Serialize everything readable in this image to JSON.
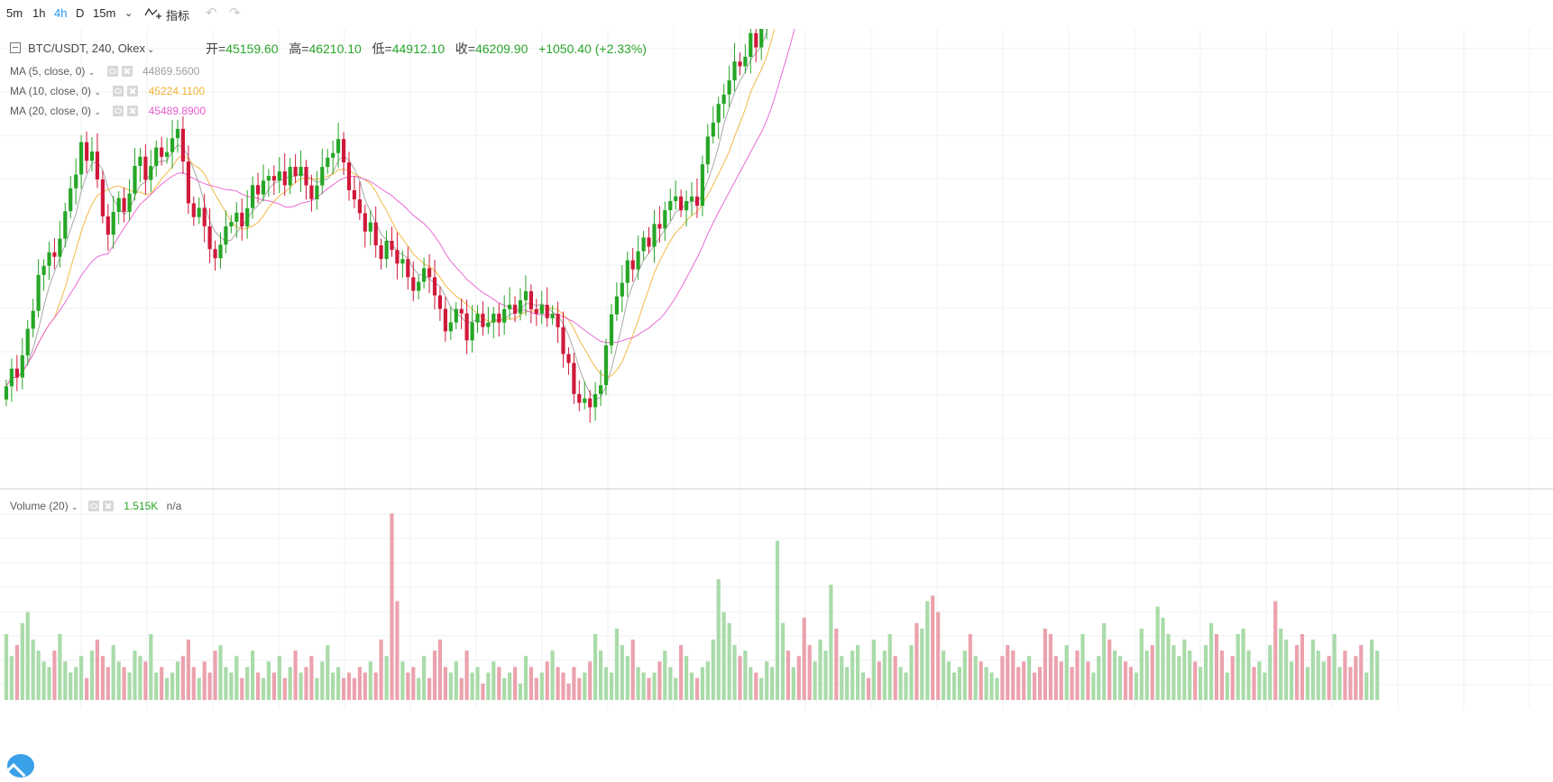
{
  "toolbar": {
    "intervals": [
      "5m",
      "1h",
      "4h",
      "D",
      "15m"
    ],
    "active_interval": "4h",
    "indicators_label": "指标"
  },
  "header": {
    "symbol": "BTC/USDT, 240, Okex",
    "open_label": "开",
    "open": "45159.60",
    "high_label": "高",
    "high": "46210.10",
    "low_label": "低",
    "low": "44912.10",
    "close_label": "收",
    "close": "46209.90",
    "change": "+1050.40 (+2.33%)"
  },
  "indicators": [
    {
      "label": "MA (5, close, 0)",
      "value": "44869.5600",
      "color": "#9e9e9e"
    },
    {
      "label": "MA (10, close, 0)",
      "value": "45224.1100",
      "color": "#f2b233"
    },
    {
      "label": "MA (20, close, 0)",
      "value": "45489.8900",
      "color": "#e85bd0"
    }
  ],
  "volume_panel": {
    "label": "Volume (20)",
    "value": "1.515K",
    "extra": "n/a"
  },
  "colors": {
    "up": "#26a626",
    "down": "#d0193a",
    "vol_up": "#a9dba9",
    "vol_down": "#eba2ad",
    "grid": "#eef1f3",
    "last_price_line": "#26a626"
  },
  "chart_data": {
    "type": "candlestick",
    "seed_price": 43800,
    "returns": [
      0.003,
      0.004,
      -0.002,
      0.005,
      0.006,
      0.004,
      0.008,
      0.002,
      0.003,
      -0.001,
      0.004,
      0.006,
      0.005,
      0.003,
      0.007,
      -0.004,
      0.002,
      -0.006,
      -0.008,
      -0.004,
      0.005,
      0.003,
      -0.003,
      0.004,
      0.006,
      0.002,
      -0.005,
      0.003,
      0.004,
      -0.002,
      0.001,
      0.003,
      0.002,
      -0.007,
      -0.009,
      -0.003,
      0.002,
      -0.004,
      -0.005,
      -0.002,
      0.003,
      0.004,
      0.001,
      0.002,
      -0.003,
      0.004,
      0.005,
      -0.002,
      0.003,
      0.001,
      -0.001,
      0.002,
      -0.003,
      0.004,
      -0.002,
      0.002,
      -0.004,
      -0.003,
      0.003,
      0.004,
      0.002,
      0.001,
      0.003,
      -0.005,
      -0.006,
      -0.002,
      -0.003,
      -0.004,
      0.002,
      -0.005,
      -0.003,
      0.004,
      -0.002,
      -0.003,
      0.001,
      -0.004,
      -0.003,
      0.002,
      0.003,
      -0.002,
      -0.004,
      -0.003,
      -0.005,
      0.002,
      0.003,
      -0.001,
      -0.006,
      0.004,
      0.002,
      -0.003,
      0.001,
      0.002,
      -0.002,
      0.003,
      0.001,
      -0.002,
      0.003,
      0.002,
      -0.004,
      -0.001,
      0.002,
      -0.003,
      0.001,
      -0.003,
      -0.006,
      -0.002,
      -0.007,
      -0.002,
      0.001,
      -0.002,
      0.003,
      0.002,
      0.009,
      0.007,
      0.004,
      0.003,
      0.005,
      -0.002,
      0.004,
      0.003,
      -0.002,
      0.005,
      -0.001,
      0.004,
      0.002,
      0.001,
      -0.003,
      0.002,
      0.001,
      -0.002,
      0.009,
      0.006,
      0.003,
      0.004,
      0.002,
      0.003,
      0.004,
      -0.001,
      0.002,
      0.005,
      -0.003,
      0.004,
      0.007,
      0.016,
      0.012,
      0.006,
      -0.004,
      0.008,
      -0.002,
      -0.012,
      -0.008,
      0.006,
      0.004,
      0.005,
      0.003,
      -0.005,
      0.008,
      0.006,
      0.005,
      0.006,
      0.003,
      -0.004,
      0.003,
      -0.003,
      0.002,
      0.003,
      -0.004,
      0.002,
      0.001,
      0.003,
      -0.002,
      0.002,
      0.001,
      -0.003,
      -0.006,
      0.004,
      0.006,
      0.009,
      0.004,
      0.002,
      -0.002,
      0.003,
      -0.003,
      0.002,
      0.004,
      0.002,
      -0.002,
      -0.003,
      -0.004,
      -0.006,
      -0.003,
      0.002,
      -0.003,
      -0.002,
      -0.004,
      -0.003,
      -0.002,
      -0.003,
      0.001,
      -0.003,
      -0.002,
      0.001,
      -0.002,
      0.002,
      0.006,
      0.004,
      -0.002,
      0.002,
      0.001,
      -0.004,
      -0.006,
      0.005,
      0.007,
      0.006,
      -0.002,
      0.004,
      0.003,
      0.006,
      0.007,
      0.004,
      0.003,
      0.004,
      -0.002,
      0.003,
      0.004,
      0.003,
      -0.002,
      -0.003,
      0.002,
      -0.004,
      0.003,
      0.007,
      0.008,
      -0.003,
      0.001,
      0.003,
      0.002,
      -0.002,
      0.001,
      0.004,
      0.002,
      -0.002,
      -0.003,
      0.002,
      0.003,
      0.002,
      0.001,
      -0.002,
      0.003,
      0.002,
      -0.004,
      -0.005,
      -0.006,
      -0.002,
      0.002,
      0.004,
      0.0233
    ],
    "volumes": [
      12,
      8,
      10,
      14,
      16,
      11,
      9,
      7,
      6,
      9,
      12,
      7,
      5,
      6,
      8,
      4,
      9,
      11,
      8,
      6,
      10,
      7,
      6,
      5,
      9,
      8,
      7,
      12,
      5,
      6,
      4,
      5,
      7,
      8,
      11,
      6,
      4,
      7,
      5,
      9,
      10,
      6,
      5,
      8,
      4,
      6,
      9,
      5,
      4,
      7,
      5,
      8,
      4,
      6,
      9,
      5,
      6,
      8,
      4,
      7,
      10,
      5,
      6,
      4,
      5,
      4,
      6,
      5,
      7,
      5,
      11,
      8,
      34,
      18,
      7,
      5,
      6,
      4,
      8,
      4,
      9,
      11,
      6,
      5,
      7,
      4,
      9,
      5,
      6,
      3,
      5,
      7,
      6,
      4,
      5,
      6,
      3,
      8,
      6,
      4,
      5,
      7,
      9,
      6,
      5,
      3,
      6,
      4,
      5,
      7,
      12,
      9,
      6,
      5,
      13,
      10,
      8,
      11,
      6,
      5,
      4,
      5,
      7,
      9,
      6,
      4,
      10,
      8,
      5,
      4,
      6,
      7,
      11,
      22,
      16,
      14,
      10,
      8,
      9,
      6,
      5,
      4,
      7,
      6,
      29,
      14,
      9,
      6,
      8,
      15,
      10,
      7,
      11,
      9,
      21,
      13,
      8,
      6,
      9,
      10,
      5,
      4,
      11,
      7,
      9,
      12,
      8,
      6,
      5,
      10,
      14,
      13,
      18,
      19,
      16,
      9,
      7,
      5,
      6,
      9,
      12,
      8,
      7,
      6,
      5,
      4,
      8,
      10,
      9,
      6,
      7,
      8,
      5,
      6,
      13,
      12,
      8,
      7,
      10,
      6,
      9,
      12,
      7,
      5,
      8,
      14,
      11,
      9,
      8,
      7,
      6,
      5,
      13,
      9,
      10,
      17,
      15,
      12,
      10,
      8,
      11,
      9,
      7,
      6,
      10,
      14,
      12,
      9,
      5,
      8,
      12,
      13,
      9,
      6,
      7,
      5,
      10,
      18,
      13,
      11,
      7,
      10,
      12,
      6,
      11,
      9,
      7,
      8,
      12,
      6,
      9,
      6,
      8,
      10,
      5,
      11,
      9,
      4,
      8,
      12,
      7,
      9,
      5,
      4,
      8,
      6,
      6,
      5
    ],
    "price_ylim": [
      43000,
      47400
    ],
    "volume_ylim": [
      0,
      36
    ],
    "ma_periods": [
      5,
      10,
      20
    ]
  }
}
